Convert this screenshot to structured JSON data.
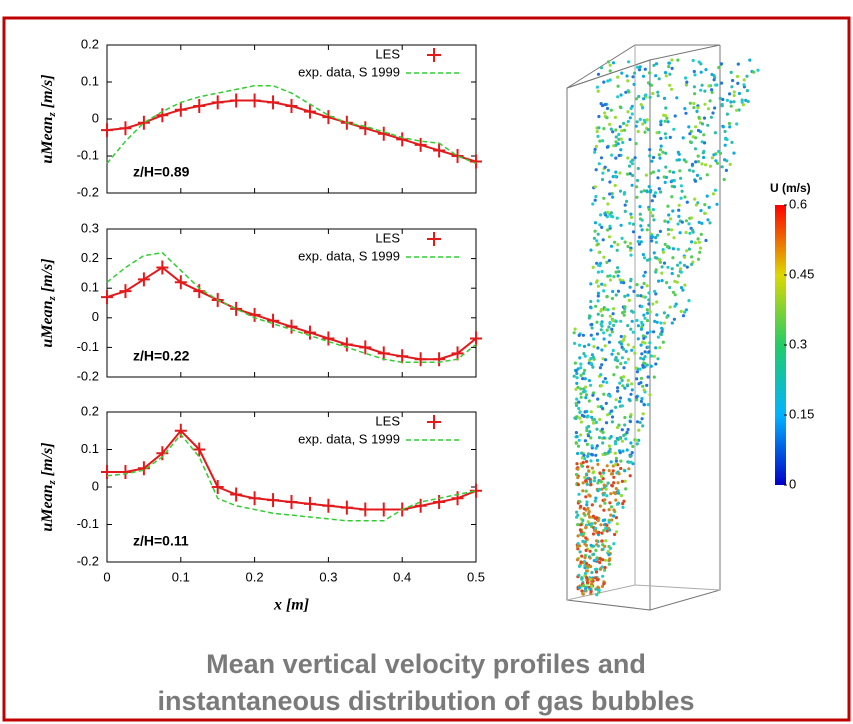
{
  "chart_data": [
    {
      "type": "line",
      "annotation": "z/H=0.89",
      "ylabel": {
        "main": "uMean",
        "sub": "z",
        "unit": "[m/s]"
      },
      "xlim": [
        0,
        0.5
      ],
      "xticks": [
        0,
        0.1,
        0.2,
        0.3,
        0.4,
        0.5
      ],
      "ylim": [
        -0.2,
        0.2
      ],
      "yticks": [
        -0.2,
        -0.1,
        0,
        0.1,
        0.2
      ],
      "x": [
        0,
        0.025,
        0.05,
        0.075,
        0.1,
        0.125,
        0.15,
        0.175,
        0.2,
        0.225,
        0.25,
        0.275,
        0.3,
        0.325,
        0.35,
        0.375,
        0.4,
        0.425,
        0.45,
        0.475,
        0.5
      ],
      "series": [
        {
          "name": "LES",
          "color": "#e31a1c",
          "values": [
            -0.03,
            -0.025,
            -0.01,
            0.01,
            0.025,
            0.035,
            0.045,
            0.05,
            0.05,
            0.045,
            0.035,
            0.02,
            0.005,
            -0.01,
            -0.025,
            -0.04,
            -0.055,
            -0.07,
            -0.085,
            -0.1,
            -0.115
          ]
        },
        {
          "name": "exp. data, S  1999",
          "color": "#33cc33",
          "values": [
            -0.12,
            -0.06,
            -0.01,
            0.02,
            0.045,
            0.06,
            0.07,
            0.08,
            0.09,
            0.09,
            0.07,
            0.04,
            0.01,
            -0.01,
            -0.02,
            -0.035,
            -0.05,
            -0.06,
            -0.065,
            -0.1,
            -0.12
          ]
        }
      ]
    },
    {
      "type": "line",
      "annotation": "z/H=0.22",
      "ylabel": {
        "main": "uMean",
        "sub": "z",
        "unit": "[m/s]"
      },
      "xlim": [
        0,
        0.5
      ],
      "xticks": [
        0,
        0.1,
        0.2,
        0.3,
        0.4,
        0.5
      ],
      "ylim": [
        -0.2,
        0.3
      ],
      "yticks": [
        -0.2,
        -0.1,
        0,
        0.1,
        0.2,
        0.3
      ],
      "x": [
        0,
        0.025,
        0.05,
        0.075,
        0.1,
        0.125,
        0.15,
        0.175,
        0.2,
        0.225,
        0.25,
        0.275,
        0.3,
        0.325,
        0.35,
        0.375,
        0.4,
        0.425,
        0.45,
        0.475,
        0.5
      ],
      "series": [
        {
          "name": "LES",
          "color": "#e31a1c",
          "values": [
            0.07,
            0.09,
            0.13,
            0.17,
            0.12,
            0.09,
            0.06,
            0.03,
            0.01,
            -0.01,
            -0.03,
            -0.05,
            -0.07,
            -0.09,
            -0.1,
            -0.12,
            -0.13,
            -0.14,
            -0.14,
            -0.12,
            -0.07
          ]
        },
        {
          "name": "exp. data, S  1999",
          "color": "#33cc33",
          "values": [
            0.12,
            0.17,
            0.21,
            0.22,
            0.16,
            0.1,
            0.06,
            0.03,
            0.0,
            -0.02,
            -0.04,
            -0.06,
            -0.08,
            -0.1,
            -0.12,
            -0.14,
            -0.15,
            -0.15,
            -0.15,
            -0.14,
            -0.09
          ]
        }
      ]
    },
    {
      "type": "line",
      "annotation": "z/H=0.11",
      "xlabel": "x [m]",
      "ylabel": {
        "main": "uMean",
        "sub": "z",
        "unit": "[m/s]"
      },
      "xlim": [
        0,
        0.5
      ],
      "xticks": [
        0,
        0.1,
        0.2,
        0.3,
        0.4,
        0.5
      ],
      "ylim": [
        -0.2,
        0.2
      ],
      "yticks": [
        -0.2,
        -0.1,
        0,
        0.1,
        0.2
      ],
      "x": [
        0,
        0.025,
        0.05,
        0.075,
        0.1,
        0.125,
        0.15,
        0.175,
        0.2,
        0.225,
        0.25,
        0.275,
        0.3,
        0.325,
        0.35,
        0.375,
        0.4,
        0.425,
        0.45,
        0.475,
        0.5
      ],
      "series": [
        {
          "name": "LES",
          "color": "#e31a1c",
          "values": [
            0.04,
            0.04,
            0.05,
            0.09,
            0.15,
            0.1,
            0.0,
            -0.02,
            -0.03,
            -0.035,
            -0.04,
            -0.045,
            -0.05,
            -0.055,
            -0.06,
            -0.06,
            -0.06,
            -0.05,
            -0.04,
            -0.03,
            -0.01
          ]
        },
        {
          "name": "exp. data, S  1999",
          "color": "#33cc33",
          "values": [
            0.03,
            0.035,
            0.045,
            0.08,
            0.14,
            0.08,
            -0.03,
            -0.05,
            -0.06,
            -0.07,
            -0.075,
            -0.08,
            -0.085,
            -0.09,
            -0.09,
            -0.09,
            -0.06,
            -0.04,
            -0.03,
            -0.02,
            -0.01
          ]
        }
      ]
    }
  ],
  "colorbar": {
    "title": "U  (m/s)",
    "clim": [
      0,
      0.6
    ],
    "ticks": [
      0,
      0.15,
      0.3,
      0.45,
      0.6
    ]
  },
  "caption": [
    "Mean vertical velocity profiles and",
    "instantaneous distribution of gas bubbles"
  ]
}
